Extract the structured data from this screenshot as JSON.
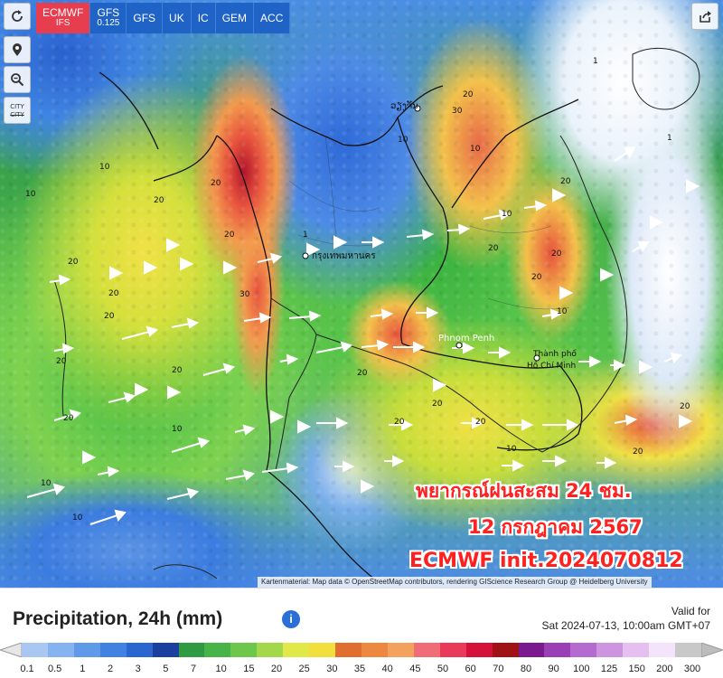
{
  "top_bar": {
    "refresh_icon": "refresh-icon",
    "share_icon": "share-icon",
    "models": [
      {
        "label": "ECMWF",
        "sub": "IFS",
        "active": true
      },
      {
        "label": "GFS",
        "sub": "0.125",
        "active": false
      },
      {
        "label": "GFS",
        "sub": "",
        "active": false
      },
      {
        "label": "UK",
        "sub": "",
        "active": false
      },
      {
        "label": "IC",
        "sub": "",
        "active": false
      },
      {
        "label": "GEM",
        "sub": "",
        "active": false
      },
      {
        "label": "ACC",
        "sub": "",
        "active": false
      }
    ]
  },
  "side_tools": {
    "location_icon": "location-pin-icon",
    "zoom_icon": "zoom-icon",
    "city_label_top": "CITY",
    "city_label_bottom": "CITY"
  },
  "map": {
    "labels": {
      "bangkok": "กรุงเทพมหานคร",
      "phnom_penh": "Phnom Penh",
      "ho_chi_minh_1": "Thành phố",
      "ho_chi_minh_2": "Hồ Chí Minh",
      "vientiane": "ວຽງຈັນ"
    },
    "isolines": [
      "20",
      "30",
      "20",
      "10",
      "1",
      "20",
      "20",
      "20",
      "10",
      "20",
      "30",
      "10",
      "20",
      "10",
      "20",
      "20",
      "10",
      "20",
      "10",
      "20",
      "20",
      "1",
      "10",
      "20",
      "20",
      "10",
      "20",
      "20",
      "10",
      "20",
      "1",
      "20",
      "10",
      "20",
      "20"
    ],
    "overlay": {
      "line1": "พยากรณ์ฝนสะสม 24 ชม.",
      "line2": "12 กรกฎาคม 2567",
      "line3": "ECMWF init.2024070812"
    },
    "attribution": "Kartenmaterial: Map data © OpenStreetMap contributors, rendering GIScience Research Group @ Heidelberg University"
  },
  "legend": {
    "title": "Precipitation, 24h (mm)",
    "info": "i",
    "valid_label": "Valid for",
    "valid_time": "Sat 2024-07-13, 10:00am GMT+07",
    "colors": [
      "#a9c7f2",
      "#85b3ef",
      "#5f9ae8",
      "#3f82e1",
      "#2a65d0",
      "#1b3f9e",
      "#2e9b42",
      "#48b346",
      "#6cc74a",
      "#a3d84a",
      "#e0e84a",
      "#f1df3e",
      "#e06f2f",
      "#ec8840",
      "#f2a25c",
      "#f06d78",
      "#ea3a5a",
      "#d4113a",
      "#a01216",
      "#7a1a8e",
      "#9a3fb6",
      "#b56ad0",
      "#cf94e0",
      "#e5bff0",
      "#f5e3fb",
      "#c8c8c8"
    ],
    "ticks": [
      "0.1",
      "0.5",
      "1",
      "2",
      "3",
      "5",
      "7",
      "10",
      "15",
      "20",
      "25",
      "30",
      "35",
      "40",
      "45",
      "50",
      "60",
      "70",
      "80",
      "90",
      "100",
      "125",
      "150",
      "200",
      "300"
    ]
  }
}
